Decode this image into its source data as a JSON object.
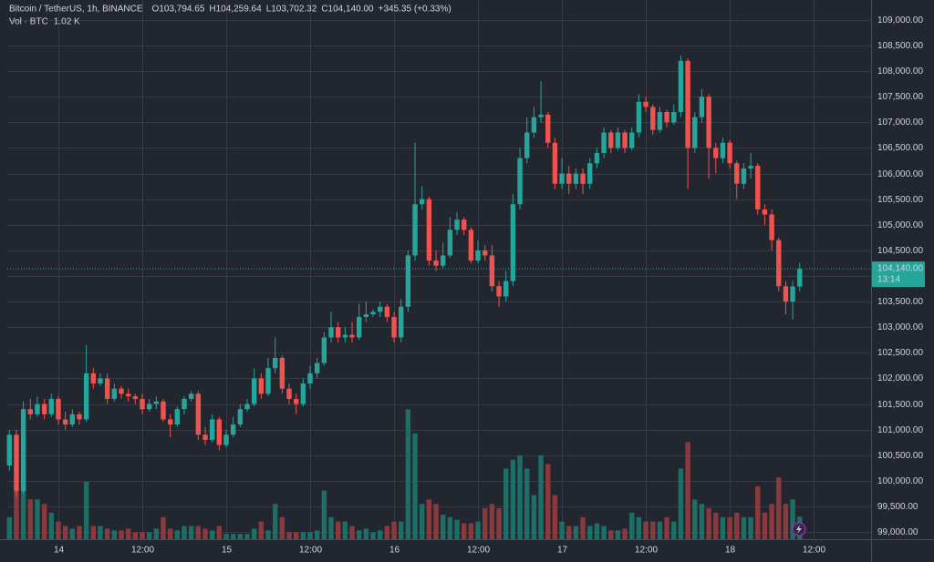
{
  "chart_data": {
    "type": "candlestick",
    "title": "Bitcoin / TetherUS, 1h, BINANCE",
    "legend": {
      "items": [
        {
          "key": "O",
          "value": "103,794.65"
        },
        {
          "key": "H",
          "value": "104,259.64"
        },
        {
          "key": "L",
          "value": "103,702.32"
        },
        {
          "key": "C",
          "value": "104,140.00"
        }
      ],
      "change": "+345.35 (+0.33%)"
    },
    "volume_legend": {
      "name": "Vol · BTC",
      "value": "1.02 K"
    },
    "up_color": "#26a69a",
    "down_color": "#ef5350",
    "volume_up_color": "#1e6e68",
    "volume_down_color": "#8a3a3d",
    "grid": true,
    "ylim": [
      98860,
      109210
    ],
    "yticks": [
      {
        "value": 99000,
        "label": "99,000.00"
      },
      {
        "value": 99500,
        "label": "99,500.00"
      },
      {
        "value": 100000,
        "label": "100,000.00"
      },
      {
        "value": 100500,
        "label": "100,500.00"
      },
      {
        "value": 101000,
        "label": "101,000.00"
      },
      {
        "value": 101500,
        "label": "101,500.00"
      },
      {
        "value": 102000,
        "label": "102,000.00"
      },
      {
        "value": 102500,
        "label": "102,500.00"
      },
      {
        "value": 103000,
        "label": "103,000.00"
      },
      {
        "value": 103500,
        "label": "103,500.00"
      },
      {
        "value": 104000,
        "label": "104,000.00"
      },
      {
        "value": 104500,
        "label": "104,500.00"
      },
      {
        "value": 105000,
        "label": "105,000.00"
      },
      {
        "value": 105500,
        "label": "105,500.00"
      },
      {
        "value": 106000,
        "label": "106,000.00"
      },
      {
        "value": 106500,
        "label": "106,500.00"
      },
      {
        "value": 107000,
        "label": "107,000.00"
      },
      {
        "value": 107500,
        "label": "107,500.00"
      },
      {
        "value": 108000,
        "label": "108,000.00"
      },
      {
        "value": 108500,
        "label": "108,500.00"
      },
      {
        "value": 109000,
        "label": "109,000.00"
      }
    ],
    "xlim": [
      -0.3,
      123.2
    ],
    "xticks": [
      {
        "value": 7,
        "label": "14"
      },
      {
        "value": 19,
        "label": "12:00"
      },
      {
        "value": 31,
        "label": "15"
      },
      {
        "value": 43,
        "label": "12:00"
      },
      {
        "value": 55,
        "label": "16"
      },
      {
        "value": 67,
        "label": "12:00"
      },
      {
        "value": 79,
        "label": "17"
      },
      {
        "value": 91,
        "label": "12:00"
      },
      {
        "value": 103,
        "label": "18"
      },
      {
        "value": 115,
        "label": "12:00"
      }
    ],
    "last_price": {
      "value": 104140,
      "label": "104,140.00"
    },
    "countdown": "13:14",
    "volume_ylim": [
      0,
      24000
    ],
    "open": [
      100300,
      100900,
      99800,
      101400,
      101300,
      101500,
      101300,
      101600,
      101200,
      101100,
      101300,
      101200,
      102100,
      101900,
      102000,
      101600,
      101800,
      101700,
      101650,
      101600,
      101400,
      101500,
      101550,
      101200,
      101100,
      101400,
      101600,
      101700,
      100900,
      100800,
      101200,
      100700,
      100900,
      101100,
      101400,
      101500,
      102000,
      101700,
      102200,
      102400,
      101800,
      101600,
      101500,
      101900,
      102100,
      102300,
      102800,
      103000,
      102800,
      102850,
      102800,
      103200,
      103250,
      103300,
      103400,
      103200,
      102800,
      103400,
      104400,
      105400,
      105500,
      104300,
      104200,
      104400,
      104900,
      105100,
      104900,
      104300,
      104500,
      104400,
      103800,
      103600,
      103900,
      105400,
      106300,
      106800,
      107100,
      107150,
      106600,
      105800,
      106000,
      105800,
      106000,
      105800,
      106200,
      106400,
      106800,
      106500,
      106800,
      106500,
      106800,
      107400,
      107300,
      106850,
      107200,
      107000,
      107200,
      108200,
      106500,
      107100,
      107500,
      106500,
      106300,
      106600,
      106200,
      105800,
      106100,
      106150,
      105300,
      105200,
      104700,
      103800,
      103500,
      103794.65
    ],
    "high": [
      101000,
      101000,
      101550,
      101600,
      101650,
      101600,
      101700,
      101650,
      101350,
      101400,
      101350,
      102650,
      102200,
      102100,
      102100,
      101900,
      101850,
      101800,
      101700,
      101700,
      101600,
      101650,
      101600,
      101300,
      101450,
      101650,
      101750,
      101750,
      101050,
      101300,
      101250,
      101000,
      101250,
      101500,
      101600,
      102200,
      102100,
      102400,
      102800,
      102450,
      101900,
      101700,
      102000,
      102250,
      102400,
      102900,
      103300,
      103100,
      103000,
      103100,
      103450,
      103500,
      103350,
      103500,
      103450,
      103300,
      103550,
      104500,
      106600,
      105750,
      105550,
      104500,
      104650,
      105150,
      105250,
      105150,
      104950,
      104700,
      104600,
      104600,
      103900,
      104100,
      105600,
      106500,
      107100,
      107300,
      107800,
      107200,
      106700,
      106300,
      106150,
      106100,
      106100,
      106300,
      106500,
      106900,
      106850,
      106900,
      106850,
      106900,
      107550,
      107500,
      107350,
      107300,
      107250,
      107350,
      108300,
      108250,
      107200,
      107650,
      107550,
      106600,
      106700,
      106650,
      106250,
      106200,
      106400,
      106200,
      105400,
      105300,
      104750,
      103900,
      103900,
      104259.64
    ],
    "low": [
      100200,
      99700,
      99750,
      101200,
      101250,
      101200,
      101250,
      101100,
      101000,
      101050,
      101100,
      101150,
      101800,
      101850,
      101500,
      101550,
      101600,
      101550,
      101500,
      101300,
      101350,
      101400,
      101150,
      100850,
      101050,
      101300,
      101550,
      100800,
      100700,
      100750,
      100600,
      100650,
      100850,
      101050,
      101350,
      101450,
      101600,
      101650,
      102100,
      101700,
      101500,
      101300,
      101450,
      101800,
      102000,
      102250,
      102700,
      102700,
      102700,
      102700,
      102750,
      103100,
      103200,
      103200,
      103100,
      102700,
      102700,
      103300,
      104300,
      105300,
      104200,
      104100,
      104150,
      104350,
      104800,
      104800,
      104250,
      104250,
      104300,
      103700,
      103400,
      103500,
      103800,
      105300,
      106200,
      106700,
      107000,
      106500,
      105700,
      105700,
      105600,
      105700,
      105600,
      105700,
      106100,
      106300,
      106400,
      106450,
      106400,
      106450,
      106700,
      107200,
      106750,
      106800,
      106900,
      106950,
      107100,
      105700,
      106400,
      107000,
      105900,
      106000,
      106200,
      106100,
      105500,
      105700,
      105900,
      105200,
      105000,
      104500,
      103700,
      103250,
      103150,
      103702.32
    ],
    "close": [
      100900,
      99800,
      101400,
      101300,
      101500,
      101300,
      101600,
      101200,
      101100,
      101300,
      101200,
      102100,
      101900,
      102000,
      101600,
      101800,
      101700,
      101650,
      101600,
      101400,
      101500,
      101550,
      101200,
      101100,
      101400,
      101600,
      101700,
      100900,
      100800,
      101200,
      100700,
      100900,
      101100,
      101400,
      101500,
      102000,
      101700,
      102200,
      102400,
      101800,
      101600,
      101500,
      101900,
      102100,
      102300,
      102800,
      103000,
      102800,
      102850,
      102800,
      103200,
      103250,
      103300,
      103400,
      103200,
      102800,
      103400,
      104400,
      105400,
      105500,
      104300,
      104200,
      104400,
      104900,
      105100,
      104900,
      104300,
      104500,
      104400,
      103800,
      103600,
      103900,
      105400,
      106300,
      106800,
      107100,
      107150,
      106600,
      105800,
      106000,
      105800,
      106000,
      105800,
      106200,
      106400,
      106800,
      106500,
      106800,
      106500,
      106800,
      107400,
      107300,
      106850,
      107200,
      107000,
      107200,
      108200,
      106500,
      107100,
      107500,
      106500,
      106300,
      106600,
      106200,
      105800,
      106100,
      106150,
      105300,
      105200,
      104700,
      103800,
      103500,
      103794.65,
      104140
    ],
    "volume": [
      1000,
      2200,
      3000,
      1800,
      1800,
      1600,
      1200,
      800,
      600,
      480,
      600,
      2600,
      600,
      600,
      480,
      400,
      400,
      480,
      320,
      320,
      320,
      480,
      1000,
      480,
      400,
      600,
      600,
      600,
      480,
      400,
      600,
      240,
      240,
      240,
      240,
      480,
      800,
      400,
      1600,
      1000,
      320,
      320,
      320,
      320,
      400,
      2200,
      1000,
      800,
      800,
      600,
      400,
      480,
      320,
      400,
      600,
      800,
      800,
      5880,
      4800,
      1600,
      1800,
      1600,
      1120,
      1000,
      880,
      720,
      720,
      800,
      1400,
      1600,
      1400,
      3200,
      3600,
      3800,
      3200,
      2000,
      3800,
      3400,
      2000,
      800,
      600,
      600,
      1000,
      600,
      720,
      600,
      400,
      400,
      480,
      1200,
      1000,
      800,
      800,
      800,
      1000,
      800,
      3200,
      4400,
      1800,
      1600,
      1400,
      1200,
      1000,
      1000,
      1200,
      1000,
      1000,
      2400,
      1200,
      1600,
      2800,
      1600,
      1800,
      1020
    ]
  }
}
